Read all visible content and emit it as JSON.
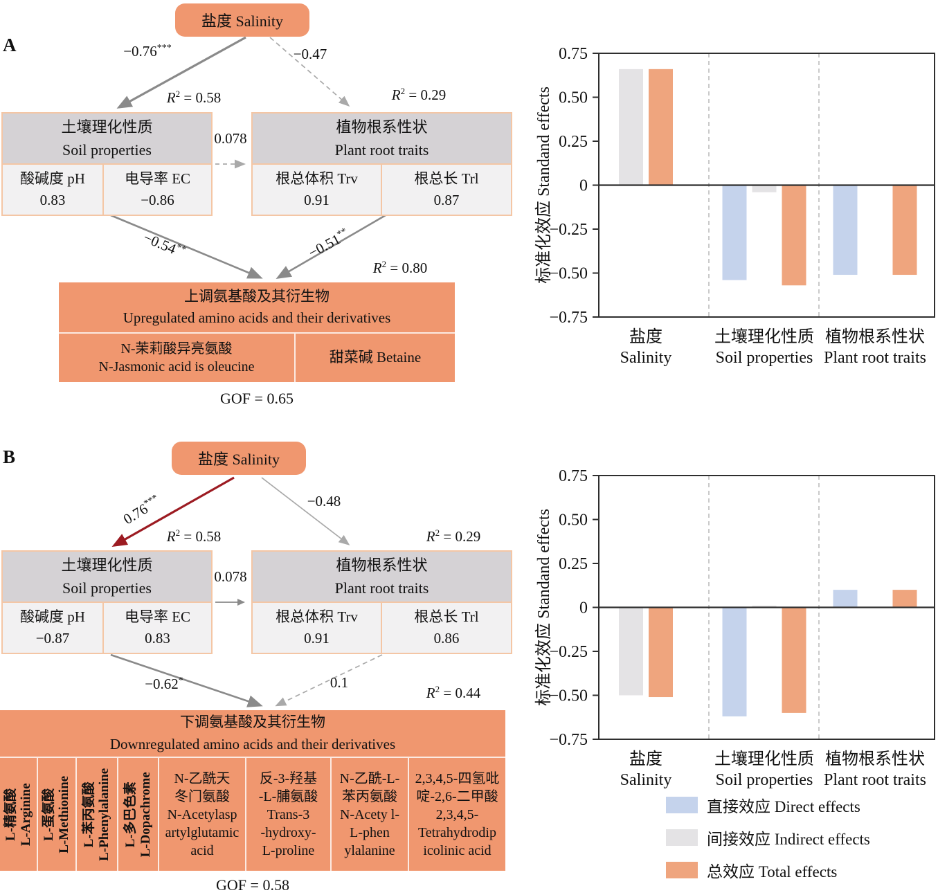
{
  "labels": {
    "r2_symbol": "R",
    "r2_sup": "2",
    "eq": " = "
  },
  "panel_a": {
    "letter": "A",
    "salinity": "盐度 Salinity",
    "soil": {
      "header": "土壤理化性质\nSoil properties",
      "cell_ph": "酸碱度 pH\n0.83",
      "cell_ec": "电导率 EC\n−0.86"
    },
    "root": {
      "header": "植物根系性状\nPlant root traits",
      "cell_trv": "根总体积 Trv\n0.91",
      "cell_trl": "根总长 Trl\n0.87"
    },
    "paths": {
      "sal_soil": {
        "value": "−0.76",
        "stars": "***"
      },
      "sal_root": {
        "value": "−0.47",
        "stars": ""
      },
      "soil_root": {
        "value": "0.078",
        "stars": ""
      },
      "soil_amino": {
        "value": "−0.54",
        "stars": "**"
      },
      "root_amino": {
        "value": "−0.51",
        "stars": "**"
      }
    },
    "r2": {
      "soil": "0.58",
      "root": "0.29",
      "amino": "0.80"
    },
    "amino": {
      "title": "上调氨基酸及其衍生物\nUpregulated amino acids and their derivatives",
      "cell1": "N-茉莉酸异亮氨酸\nN-Jasmonic acid is oleucine",
      "cell2": "甜菜碱 Betaine"
    },
    "gof": "GOF = 0.65"
  },
  "panel_b": {
    "letter": "B",
    "salinity": "盐度 Salinity",
    "soil": {
      "header": "土壤理化性质\nSoil properties",
      "cell_ph": "酸碱度 pH\n−0.87",
      "cell_ec": "电导率 EC\n0.83"
    },
    "root": {
      "header": "植物根系性状\nPlant root traits",
      "cell_trv": "根总体积 Trv\n0.91",
      "cell_trl": "根总长 Trl\n0.86"
    },
    "paths": {
      "sal_soil": {
        "value": "0.76",
        "stars": "***"
      },
      "sal_root": {
        "value": "−0.48",
        "stars": ""
      },
      "soil_root": {
        "value": "0.078",
        "stars": ""
      },
      "soil_amino": {
        "value": "−0.62",
        "stars": "*"
      },
      "root_amino": {
        "value": "0.1",
        "stars": ""
      }
    },
    "r2": {
      "soil": "0.58",
      "root": "0.29",
      "amino": "0.44"
    },
    "amino": {
      "title": "下调氨基酸及其衍生物\nDownregulated amino acids and their derivatives",
      "vertical_cells": [
        "L-精氨酸\nL-Arginine",
        "L-蛋氨酸\nL-Methionine",
        "L-苯丙氨酸\nL-Phenylalanine",
        "L-多巴色素\nL-Dopachrome"
      ],
      "horizontal_cells": [
        "N-乙酰天\n冬门氨酸\nN-Acetylasp\nartylglutamic\nacid",
        "反-3-羟基\n-L-脯氨酸\nTrans-3\n-hydroxy-\nL-proline",
        "N-乙酰-L-\n苯丙氨酸\nN-Acety l-\nL-phen\nylalanine",
        "2,3,4,5-四氢吡\n啶-2,6-二甲酸\n2,3,4,5-\nTetrahydrodip\nicolinic acid"
      ]
    },
    "gof": "GOF = 0.58"
  },
  "chart_data": [
    {
      "panel": "A",
      "type": "bar",
      "title": "",
      "ylabel": "标准化效应 Standand effects",
      "ylim": [
        -0.75,
        0.75
      ],
      "yticks": [
        0.75,
        0.5,
        0.25,
        0,
        -0.25,
        -0.5,
        -0.75
      ],
      "grid": "dashed vertical separators between categories",
      "categories_zh": [
        "盐度",
        "土壤理化性质",
        "植物根系性状"
      ],
      "categories_en": [
        "Salinity",
        "Soil properties",
        "Plant root traits"
      ],
      "series": [
        {
          "name": "直接效应 Direct effects",
          "color": "#c5d3ec",
          "values": [
            null,
            -0.54,
            -0.51
          ]
        },
        {
          "name": "间接效应 Indirect effects",
          "color": "#e4e3e5",
          "values": [
            0.66,
            -0.04,
            0
          ]
        },
        {
          "name": "总效应 Total effects",
          "color": "#efa57e",
          "values": [
            0.66,
            -0.57,
            -0.51
          ]
        }
      ]
    },
    {
      "panel": "B",
      "type": "bar",
      "title": "",
      "ylabel": "标准化效应 Standand effects",
      "ylim": [
        -0.75,
        0.75
      ],
      "yticks": [
        0.75,
        0.5,
        0.25,
        0,
        -0.25,
        -0.5,
        -0.75
      ],
      "grid": "dashed vertical separators between categories",
      "categories_zh": [
        "盐度",
        "土壤理化性质",
        "植物根系性状"
      ],
      "categories_en": [
        "Salinity",
        "Soil properties",
        "Plant root traits"
      ],
      "series": [
        {
          "name": "直接效应 Direct effects",
          "color": "#c5d3ec",
          "values": [
            null,
            -0.62,
            0.1
          ]
        },
        {
          "name": "间接效应 Indirect effects",
          "color": "#e4e3e5",
          "values": [
            -0.5,
            0.01,
            0
          ]
        },
        {
          "name": "总效应 Total effects",
          "color": "#efa57e",
          "values": [
            -0.51,
            -0.6,
            0.1
          ]
        }
      ]
    }
  ],
  "legend": {
    "items": [
      {
        "label": "直接效应 Direct effects",
        "color": "#c5d3ec"
      },
      {
        "label": "间接效应 Indirect effects",
        "color": "#e4e3e5"
      },
      {
        "label": "总效应 Total effects",
        "color": "#efa57e"
      }
    ]
  },
  "colors": {
    "node_fill": "#f0976f",
    "node_border": "#f4c6a5",
    "header_fill": "#d5d2d5",
    "cell_fill": "#f2f1f2",
    "arrow_gray": "#8a8a8a",
    "arrow_light": "#a9a9a9",
    "arrow_red": "#9c1b22",
    "bar_direct": "#c5d3ec",
    "bar_indirect": "#e4e3e5",
    "bar_total": "#efa57e"
  }
}
